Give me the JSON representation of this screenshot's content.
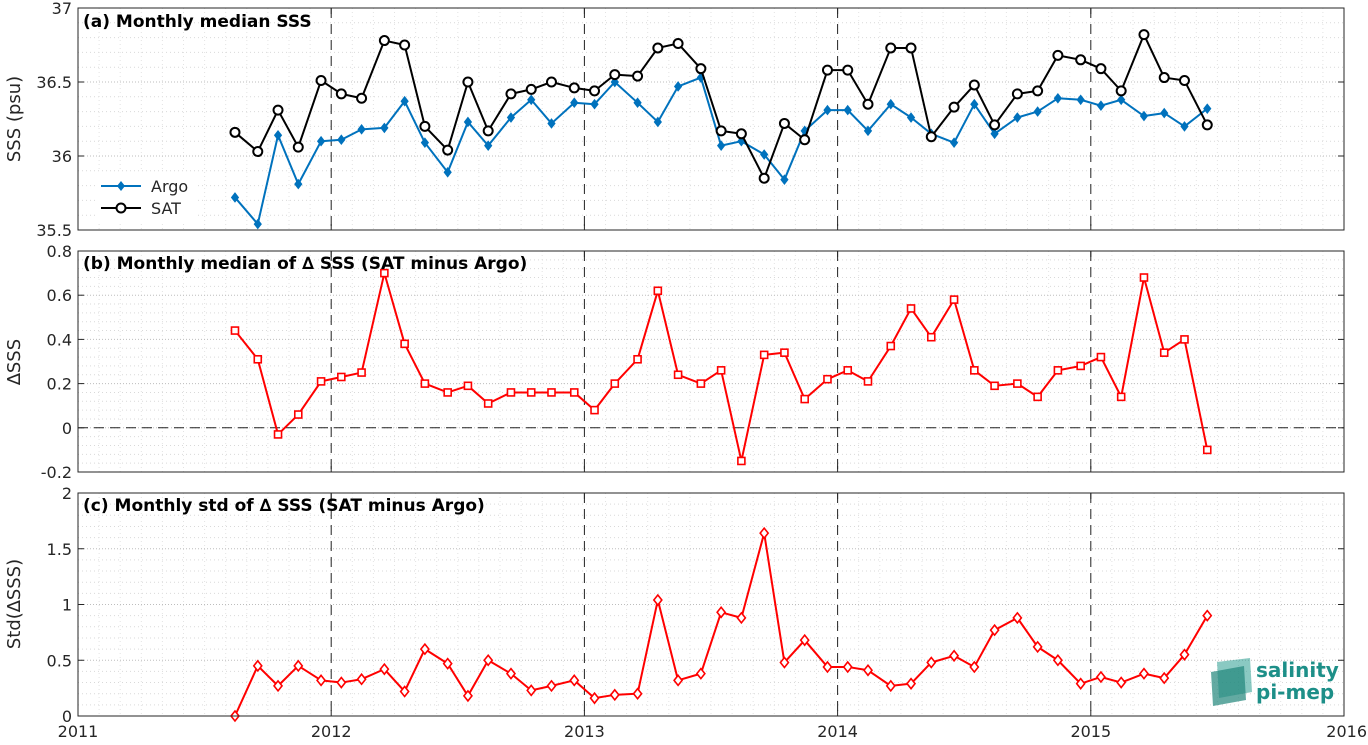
{
  "chart_data": [
    {
      "type": "line",
      "title": "(a) Monthly median SSS",
      "ylabel": "SSS (psu)",
      "xlim": [
        2011,
        2016
      ],
      "ylim": [
        35.5,
        37
      ],
      "xticks": [
        "2011",
        "2012",
        "2013",
        "2014",
        "2015",
        "2016"
      ],
      "yticks": [
        "35.5",
        "36",
        "36.5",
        "37"
      ],
      "grid": true,
      "legend": "left",
      "x": [
        2011.62,
        2011.71,
        2011.79,
        2011.87,
        2011.96,
        2012.04,
        2012.12,
        2012.21,
        2012.29,
        2012.37,
        2012.46,
        2012.54,
        2012.62,
        2012.71,
        2012.79,
        2012.87,
        2012.96,
        2013.04,
        2013.12,
        2013.21,
        2013.29,
        2013.37,
        2013.46,
        2013.54,
        2013.62,
        2013.71,
        2013.79,
        2013.87,
        2013.96,
        2014.04,
        2014.12,
        2014.21,
        2014.29,
        2014.37,
        2014.46,
        2014.54,
        2014.62,
        2014.71,
        2014.79,
        2014.87,
        2014.96,
        2015.04,
        2015.12,
        2015.21,
        2015.29,
        2015.37,
        2015.46
      ],
      "series": [
        {
          "name": "Argo",
          "color": "#0072bd",
          "marker": "diamond",
          "values": [
            35.72,
            35.54,
            36.14,
            35.81,
            36.1,
            36.11,
            36.18,
            36.19,
            36.37,
            36.09,
            35.89,
            36.23,
            36.07,
            36.26,
            36.38,
            36.22,
            36.36,
            36.35,
            36.5,
            36.36,
            36.23,
            36.47,
            36.53,
            36.07,
            36.1,
            36.01,
            35.84,
            36.17,
            36.31,
            36.31,
            36.17,
            36.35,
            36.26,
            36.15,
            36.09,
            36.35,
            36.15,
            36.26,
            36.3,
            36.39,
            36.38,
            36.34,
            36.38,
            36.27,
            36.29,
            36.2,
            36.32
          ]
        },
        {
          "name": "SAT",
          "color": "#000000",
          "marker": "circle",
          "values": [
            36.16,
            36.03,
            36.31,
            36.06,
            36.51,
            36.42,
            36.39,
            36.78,
            36.75,
            36.2,
            36.04,
            36.5,
            36.17,
            36.42,
            36.45,
            36.5,
            36.46,
            36.44,
            36.55,
            36.54,
            36.73,
            36.76,
            36.59,
            36.17,
            36.15,
            35.85,
            36.22,
            36.11,
            36.58,
            36.58,
            36.35,
            36.73,
            36.73,
            36.13,
            36.33,
            36.48,
            36.21,
            36.42,
            36.44,
            36.68,
            36.65,
            36.59,
            36.44,
            36.82,
            36.53,
            36.51,
            36.21
          ]
        }
      ]
    },
    {
      "type": "line",
      "title": "(b) Monthly median of ∆ SSS (SAT minus Argo)",
      "ylabel": "∆SSS",
      "xlim": [
        2011,
        2016
      ],
      "ylim": [
        -0.2,
        0.8
      ],
      "xticks": [
        "2011",
        "2012",
        "2013",
        "2014",
        "2015",
        "2016"
      ],
      "yticks": [
        "-0.2",
        "0",
        "0.2",
        "0.4",
        "0.6",
        "0.8"
      ],
      "grid": true,
      "reference_line": 0,
      "x": [
        2011.62,
        2011.71,
        2011.79,
        2011.87,
        2011.96,
        2012.04,
        2012.12,
        2012.21,
        2012.29,
        2012.37,
        2012.46,
        2012.54,
        2012.62,
        2012.71,
        2012.79,
        2012.87,
        2012.96,
        2013.04,
        2013.12,
        2013.21,
        2013.29,
        2013.37,
        2013.46,
        2013.54,
        2013.62,
        2013.71,
        2013.79,
        2013.87,
        2013.96,
        2014.04,
        2014.12,
        2014.21,
        2014.29,
        2014.37,
        2014.46,
        2014.54,
        2014.62,
        2014.71,
        2014.79,
        2014.87,
        2014.96,
        2015.04,
        2015.12,
        2015.21,
        2015.29,
        2015.37,
        2015.46
      ],
      "series": [
        {
          "color": "#ff0000",
          "marker": "square",
          "values": [
            0.44,
            0.31,
            -0.03,
            0.06,
            0.21,
            0.23,
            0.25,
            0.7,
            0.38,
            0.2,
            0.16,
            0.19,
            0.11,
            0.16,
            0.16,
            0.16,
            0.16,
            0.08,
            0.2,
            0.31,
            0.62,
            0.24,
            0.2,
            0.26,
            -0.15,
            0.33,
            0.34,
            0.13,
            0.22,
            0.26,
            0.21,
            0.37,
            0.54,
            0.41,
            0.58,
            0.26,
            0.19,
            0.2,
            0.14,
            0.26,
            0.28,
            0.32,
            0.14,
            0.68,
            0.34,
            0.4,
            -0.1
          ]
        }
      ]
    },
    {
      "type": "line",
      "title": "(c) Monthly std of ∆ SSS (SAT minus Argo)",
      "ylabel": "Std(∆SSS)",
      "xlim": [
        2011,
        2016
      ],
      "ylim": [
        0,
        2
      ],
      "xticks": [
        "2011",
        "2012",
        "2013",
        "2014",
        "2015",
        "2016"
      ],
      "yticks": [
        "0",
        "0.5",
        "1",
        "1.5",
        "2"
      ],
      "grid": true,
      "x": [
        2011.62,
        2011.71,
        2011.79,
        2011.87,
        2011.96,
        2012.04,
        2012.12,
        2012.21,
        2012.29,
        2012.37,
        2012.46,
        2012.54,
        2012.62,
        2012.71,
        2012.79,
        2012.87,
        2012.96,
        2013.04,
        2013.12,
        2013.21,
        2013.29,
        2013.37,
        2013.46,
        2013.54,
        2013.62,
        2013.71,
        2013.79,
        2013.87,
        2013.96,
        2014.04,
        2014.12,
        2014.21,
        2014.29,
        2014.37,
        2014.46,
        2014.54,
        2014.62,
        2014.71,
        2014.79,
        2014.87,
        2014.96,
        2015.04,
        2015.12,
        2015.21,
        2015.29,
        2015.37,
        2015.46
      ],
      "series": [
        {
          "color": "#ff0000",
          "marker": "diamond-open",
          "values": [
            0.0,
            0.45,
            0.27,
            0.45,
            0.32,
            0.3,
            0.33,
            0.42,
            0.22,
            0.6,
            0.47,
            0.18,
            0.5,
            0.38,
            0.23,
            0.27,
            0.32,
            0.16,
            0.19,
            0.2,
            1.04,
            0.32,
            0.38,
            0.93,
            0.88,
            1.64,
            0.48,
            0.68,
            0.44,
            0.44,
            0.41,
            0.27,
            0.29,
            0.48,
            0.54,
            0.44,
            0.77,
            0.88,
            0.62,
            0.5,
            0.29,
            0.35,
            0.3,
            0.38,
            0.34,
            0.55,
            0.9
          ]
        }
      ]
    }
  ],
  "logo": {
    "line1": "salinity",
    "line2": "pi-mep"
  }
}
